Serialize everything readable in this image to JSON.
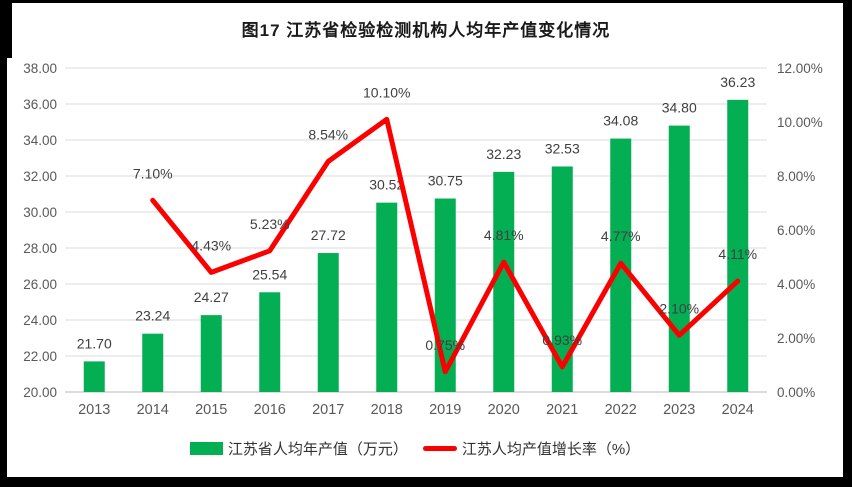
{
  "chart_data": {
    "type": "combo-bar-line",
    "title": "图17  江苏省检验检测机构人均年产值变化情况",
    "categories": [
      "2013",
      "2014",
      "2015",
      "2016",
      "2017",
      "2018",
      "2019",
      "2020",
      "2021",
      "2022",
      "2023",
      "2024"
    ],
    "series": [
      {
        "name": "江苏省人均年产值（万元）",
        "type": "bar",
        "axis": "left",
        "values": [
          21.7,
          23.24,
          24.27,
          25.54,
          27.72,
          30.52,
          30.75,
          32.23,
          32.53,
          34.08,
          34.8,
          36.23
        ],
        "data_labels": [
          "21.70",
          "23.24",
          "24.27",
          "25.54",
          "27.72",
          "30.52",
          "30.75",
          "32.23",
          "32.53",
          "34.08",
          "34.80",
          "36.23"
        ]
      },
      {
        "name": "江苏人均产值增长率（%）",
        "type": "line",
        "axis": "right",
        "values": [
          null,
          7.1,
          4.43,
          5.23,
          8.54,
          10.1,
          0.75,
          4.81,
          0.93,
          4.77,
          2.1,
          4.11
        ],
        "data_labels": [
          "",
          "7.10%",
          "4.43%",
          "5.23%",
          "8.54%",
          "10.10%",
          "0.75%",
          "4.81%",
          "0.93%",
          "4.77%",
          "2.10%",
          "4.11%"
        ]
      }
    ],
    "left_axis": {
      "min": 20,
      "max": 38,
      "tick_step": 2,
      "tick_labels": [
        "38.00",
        "36.00",
        "34.00",
        "32.00",
        "30.00",
        "28.00",
        "26.00",
        "24.00",
        "22.00",
        "20.00"
      ]
    },
    "right_axis": {
      "min": 0,
      "max": 12,
      "tick_step": 2,
      "tick_labels": [
        "12.00%",
        "10.00%",
        "8.00%",
        "6.00%",
        "4.00%",
        "2.00%",
        "0.00%"
      ]
    },
    "grid": true,
    "legend_position": "bottom",
    "colors": {
      "bar": "#04AE53",
      "line": "#FC0000",
      "grid": "#E2E2E2",
      "axis_line": "#C6C6C6",
      "axis_text": "#595959",
      "data_label": "#3F3F3F",
      "frame_border": "#000000"
    }
  }
}
